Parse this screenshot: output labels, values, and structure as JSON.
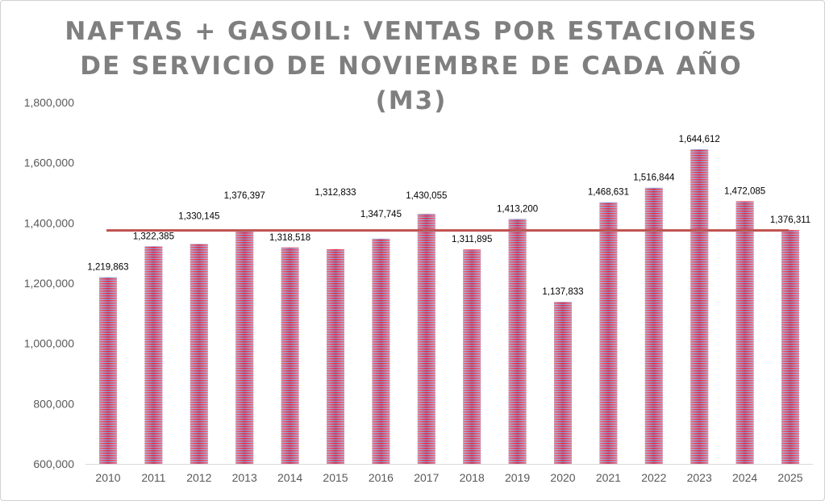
{
  "chart_data": {
    "type": "bar",
    "title_lines": [
      "NAFTAS + GASOIL: VENTAS POR ESTACIONES",
      "DE SERVICIO DE NOVIEMBRE DE CADA AÑO",
      "(M3)"
    ],
    "xlabel": "",
    "ylabel": "",
    "categories": [
      "2010",
      "2011",
      "2012",
      "2013",
      "2014",
      "2015",
      "2016",
      "2017",
      "2018",
      "2019",
      "2020",
      "2021",
      "2022",
      "2023",
      "2024",
      "2025"
    ],
    "values": [
      1219863,
      1322385,
      1330145,
      1376397,
      1318518,
      1312833,
      1347745,
      1430055,
      1311895,
      1413200,
      1137833,
      1468631,
      1516844,
      1644612,
      1472085,
      1376311
    ],
    "data_labels": [
      "1,219,863",
      "1,322,385",
      "1,330,145",
      "1,376,397",
      "1,318,518",
      "1,312,833",
      "1,347,745",
      "1,430,055",
      "1,311,895",
      "1,413,200",
      "1,137,833",
      "1,468,631",
      "1,516,844",
      "1,644,612",
      "1,472,085",
      "1,376,311"
    ],
    "ylim": [
      600000,
      1800000
    ],
    "yticks": [
      600000,
      800000,
      1000000,
      1200000,
      1400000,
      1600000,
      1800000
    ],
    "ytick_labels": [
      "600,000",
      "800,000",
      "1,000,000",
      "1,200,000",
      "1,400,000",
      "1,600,000",
      "1,800,000"
    ],
    "reference_line": {
      "name": "average",
      "value": 1374960,
      "color": "#c0504d"
    },
    "bar_colors": {
      "stripe_a": "#e8213a",
      "stripe_b": "#8a8fc8"
    },
    "grid": false,
    "legend": "none"
  }
}
